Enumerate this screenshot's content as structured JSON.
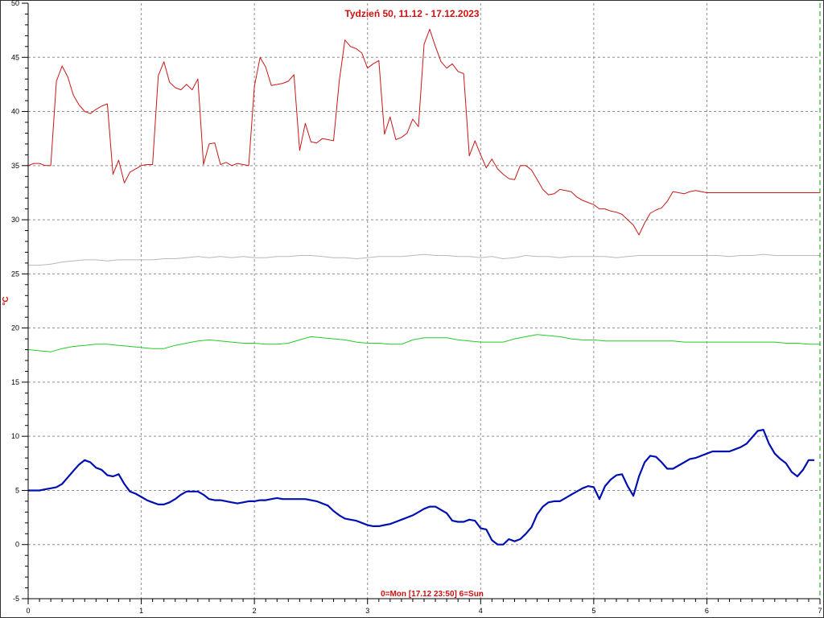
{
  "chart_data": {
    "type": "line",
    "title": "Tydzień 50, 11.12 - 17.12.2023",
    "xlabel": "0=Mon [17.12 23:50] 6=Sun",
    "ylabel": "°C",
    "xlim": [
      0,
      7
    ],
    "ylim": [
      -5,
      50
    ],
    "xticks": [
      0,
      1,
      2,
      3,
      4,
      5,
      6,
      7
    ],
    "yticks": [
      -5,
      0,
      5,
      10,
      15,
      20,
      25,
      30,
      35,
      40,
      45,
      50
    ],
    "grid": true,
    "colors": {
      "red": "#c81818",
      "gray": "#b8b8b8",
      "green": "#22cc22",
      "blue": "#0010b0",
      "grid": "#909090",
      "end_marker": "#119911"
    },
    "series": [
      {
        "color_key": "red",
        "x": [
          0.0,
          0.05,
          0.1,
          0.15,
          0.2,
          0.25,
          0.3,
          0.35,
          0.4,
          0.45,
          0.5,
          0.55,
          0.6,
          0.65,
          0.7,
          0.75,
          0.8,
          0.85,
          0.9,
          0.95,
          1.0,
          1.05,
          1.1,
          1.15,
          1.2,
          1.25,
          1.3,
          1.35,
          1.4,
          1.45,
          1.5,
          1.55,
          1.6,
          1.65,
          1.7,
          1.75,
          1.8,
          1.85,
          1.9,
          1.95,
          2.0,
          2.05,
          2.1,
          2.15,
          2.2,
          2.25,
          2.3,
          2.35,
          2.4,
          2.45,
          2.5,
          2.55,
          2.6,
          2.65,
          2.7,
          2.75,
          2.8,
          2.85,
          2.9,
          2.95,
          3.0,
          3.05,
          3.1,
          3.15,
          3.2,
          3.25,
          3.3,
          3.35,
          3.4,
          3.45,
          3.5,
          3.55,
          3.6,
          3.65,
          3.7,
          3.75,
          3.8,
          3.85,
          3.9,
          3.95,
          4.0,
          4.05,
          4.1,
          4.15,
          4.2,
          4.25,
          4.3,
          4.35,
          4.4,
          4.45,
          4.5,
          4.55,
          4.6,
          4.65,
          4.7,
          4.75,
          4.8,
          4.85,
          4.9,
          4.95,
          5.0,
          5.05,
          5.1,
          5.15,
          5.2,
          5.25,
          5.3,
          5.35,
          5.4,
          5.45,
          5.5,
          5.55,
          5.6,
          5.65,
          5.7,
          5.75,
          5.8,
          5.85,
          5.9,
          5.95,
          6.0,
          6.05,
          6.1,
          6.15,
          6.2,
          6.25,
          6.3,
          6.35,
          6.4,
          6.45,
          6.5,
          6.55,
          6.6,
          6.65,
          6.7,
          6.75,
          6.8,
          6.85,
          6.9,
          6.95,
          7.0
        ],
        "values": [
          35.0,
          35.2,
          35.2,
          35.0,
          35.0,
          42.8,
          44.2,
          43.2,
          41.5,
          40.6,
          40.0,
          39.8,
          40.2,
          40.5,
          40.7,
          34.2,
          35.5,
          33.4,
          34.4,
          34.7,
          35.0,
          35.1,
          35.1,
          43.3,
          44.6,
          42.7,
          42.2,
          42.0,
          42.5,
          42.0,
          43.0,
          35.1,
          37.0,
          37.1,
          35.1,
          35.3,
          35.0,
          35.2,
          35.1,
          35.0,
          42.3,
          45.0,
          44.1,
          42.4,
          42.5,
          42.6,
          42.8,
          43.4,
          36.4,
          38.9,
          37.2,
          37.1,
          37.5,
          37.4,
          37.3,
          42.8,
          46.6,
          46.0,
          45.8,
          45.4,
          44.0,
          44.4,
          44.7,
          37.9,
          39.5,
          37.4,
          37.6,
          38.0,
          39.3,
          38.6,
          46.2,
          47.6,
          46.0,
          44.6,
          44.0,
          44.4,
          43.7,
          43.5,
          35.9,
          37.3,
          36.0,
          34.8,
          35.6,
          34.7,
          34.2,
          33.8,
          33.7,
          35.0,
          35.0,
          34.6,
          33.7,
          32.8,
          32.3,
          32.4,
          32.8,
          32.7,
          32.6,
          32.1,
          31.8,
          31.6,
          31.4,
          31.0,
          31.0,
          30.8,
          30.7,
          30.5,
          30.0,
          29.5,
          28.6,
          29.7,
          30.6,
          30.9,
          31.1,
          31.7,
          32.6,
          32.5,
          32.4,
          32.6,
          32.7,
          32.6,
          32.5,
          32.5,
          32.5,
          32.5,
          32.5,
          32.5,
          32.5,
          32.5,
          32.5,
          32.5,
          32.5,
          32.5,
          32.5,
          32.5,
          32.5,
          32.5,
          32.5,
          32.5,
          32.5,
          32.5,
          32.5
        ],
        "x_end": 6.95
      },
      {
        "color_key": "gray",
        "x": [
          0.0,
          0.1,
          0.2,
          0.3,
          0.4,
          0.5,
          0.6,
          0.7,
          0.8,
          0.9,
          1.0,
          1.1,
          1.2,
          1.3,
          1.4,
          1.5,
          1.6,
          1.7,
          1.8,
          1.9,
          2.0,
          2.1,
          2.2,
          2.3,
          2.4,
          2.5,
          2.6,
          2.7,
          2.8,
          2.9,
          3.0,
          3.1,
          3.2,
          3.3,
          3.4,
          3.5,
          3.6,
          3.7,
          3.8,
          3.9,
          4.0,
          4.1,
          4.2,
          4.3,
          4.4,
          4.5,
          4.6,
          4.7,
          4.8,
          4.9,
          5.0,
          5.1,
          5.2,
          5.3,
          5.4,
          5.5,
          5.6,
          5.7,
          5.8,
          5.9,
          6.0,
          6.1,
          6.2,
          6.3,
          6.4,
          6.5,
          6.6,
          6.7,
          6.8,
          6.9,
          7.0
        ],
        "values": [
          25.8,
          25.8,
          25.9,
          26.1,
          26.2,
          26.3,
          26.3,
          26.2,
          26.3,
          26.3,
          26.3,
          26.3,
          26.4,
          26.4,
          26.5,
          26.6,
          26.5,
          26.6,
          26.5,
          26.6,
          26.5,
          26.5,
          26.6,
          26.6,
          26.7,
          26.7,
          26.6,
          26.5,
          26.5,
          26.4,
          26.5,
          26.6,
          26.6,
          26.6,
          26.7,
          26.8,
          26.7,
          26.7,
          26.6,
          26.6,
          26.5,
          26.6,
          26.4,
          26.5,
          26.7,
          26.6,
          26.6,
          26.5,
          26.6,
          26.6,
          26.6,
          26.6,
          26.5,
          26.6,
          26.7,
          26.7,
          26.7,
          26.7,
          26.7,
          26.7,
          26.7,
          26.7,
          26.6,
          26.7,
          26.7,
          26.8,
          26.7,
          26.7,
          26.7,
          26.7,
          26.7
        ],
        "x_end": 6.95
      },
      {
        "color_key": "green",
        "x": [
          0.0,
          0.1,
          0.2,
          0.3,
          0.4,
          0.5,
          0.6,
          0.7,
          0.8,
          0.9,
          1.0,
          1.1,
          1.2,
          1.3,
          1.4,
          1.5,
          1.6,
          1.7,
          1.8,
          1.9,
          2.0,
          2.1,
          2.2,
          2.3,
          2.4,
          2.5,
          2.6,
          2.7,
          2.8,
          2.9,
          3.0,
          3.1,
          3.2,
          3.3,
          3.4,
          3.5,
          3.6,
          3.7,
          3.8,
          3.9,
          4.0,
          4.1,
          4.2,
          4.3,
          4.4,
          4.5,
          4.6,
          4.7,
          4.8,
          4.9,
          5.0,
          5.1,
          5.2,
          5.3,
          5.4,
          5.5,
          5.6,
          5.7,
          5.8,
          5.9,
          6.0,
          6.1,
          6.2,
          6.3,
          6.4,
          6.5,
          6.6,
          6.7,
          6.8,
          6.9,
          7.0
        ],
        "values": [
          18.0,
          17.9,
          17.8,
          18.1,
          18.3,
          18.4,
          18.5,
          18.5,
          18.4,
          18.3,
          18.2,
          18.1,
          18.1,
          18.4,
          18.6,
          18.8,
          18.9,
          18.8,
          18.7,
          18.6,
          18.6,
          18.5,
          18.5,
          18.6,
          18.9,
          19.2,
          19.1,
          19.0,
          18.9,
          18.7,
          18.6,
          18.6,
          18.5,
          18.5,
          18.9,
          19.1,
          19.1,
          19.1,
          18.9,
          18.8,
          18.7,
          18.7,
          18.7,
          19.0,
          19.2,
          19.4,
          19.3,
          19.2,
          19.0,
          18.9,
          18.9,
          18.8,
          18.8,
          18.8,
          18.8,
          18.8,
          18.8,
          18.8,
          18.7,
          18.7,
          18.7,
          18.7,
          18.7,
          18.7,
          18.7,
          18.7,
          18.7,
          18.6,
          18.6,
          18.5,
          18.5
        ],
        "x_end": 6.95
      },
      {
        "color_key": "blue",
        "x": [
          0.0,
          0.05,
          0.1,
          0.15,
          0.2,
          0.25,
          0.3,
          0.35,
          0.4,
          0.45,
          0.5,
          0.55,
          0.6,
          0.65,
          0.7,
          0.75,
          0.8,
          0.85,
          0.9,
          0.95,
          1.0,
          1.05,
          1.1,
          1.15,
          1.2,
          1.25,
          1.3,
          1.35,
          1.4,
          1.45,
          1.5,
          1.55,
          1.6,
          1.65,
          1.7,
          1.75,
          1.8,
          1.85,
          1.9,
          1.95,
          2.0,
          2.05,
          2.1,
          2.15,
          2.2,
          2.25,
          2.3,
          2.35,
          2.4,
          2.45,
          2.5,
          2.55,
          2.6,
          2.65,
          2.7,
          2.75,
          2.8,
          2.85,
          2.9,
          2.95,
          3.0,
          3.05,
          3.1,
          3.15,
          3.2,
          3.25,
          3.3,
          3.35,
          3.4,
          3.45,
          3.5,
          3.55,
          3.6,
          3.65,
          3.7,
          3.75,
          3.8,
          3.85,
          3.9,
          3.95,
          4.0,
          4.05,
          4.1,
          4.15,
          4.2,
          4.25,
          4.3,
          4.35,
          4.4,
          4.45,
          4.5,
          4.55,
          4.6,
          4.65,
          4.7,
          4.75,
          4.8,
          4.85,
          4.9,
          4.95,
          5.0,
          5.05,
          5.1,
          5.15,
          5.2,
          5.25,
          5.3,
          5.35,
          5.4,
          5.45,
          5.5,
          5.55,
          5.6,
          5.65,
          5.7,
          5.75,
          5.8,
          5.85,
          5.9,
          5.95,
          6.0,
          6.05,
          6.1,
          6.15,
          6.2,
          6.25,
          6.3,
          6.35,
          6.4,
          6.45,
          6.5,
          6.55,
          6.6,
          6.65,
          6.7,
          6.75,
          6.8,
          6.85,
          6.9,
          6.95
        ],
        "values": [
          5.0,
          5.0,
          5.0,
          5.1,
          5.2,
          5.3,
          5.6,
          6.2,
          6.8,
          7.4,
          7.8,
          7.6,
          7.1,
          6.9,
          6.4,
          6.3,
          6.5,
          5.6,
          4.9,
          4.7,
          4.4,
          4.1,
          3.9,
          3.7,
          3.7,
          3.9,
          4.2,
          4.6,
          4.9,
          4.9,
          4.9,
          4.6,
          4.2,
          4.1,
          4.1,
          4.0,
          3.9,
          3.8,
          3.9,
          4.0,
          4.0,
          4.1,
          4.1,
          4.2,
          4.3,
          4.2,
          4.2,
          4.2,
          4.2,
          4.2,
          4.1,
          4.0,
          3.8,
          3.6,
          3.1,
          2.7,
          2.4,
          2.3,
          2.2,
          2.0,
          1.8,
          1.7,
          1.7,
          1.8,
          1.9,
          2.1,
          2.3,
          2.5,
          2.7,
          3.0,
          3.3,
          3.5,
          3.5,
          3.2,
          2.9,
          2.2,
          2.1,
          2.1,
          2.3,
          2.2,
          1.5,
          1.4,
          0.4,
          0.0,
          0.0,
          0.5,
          0.3,
          0.5,
          1.0,
          1.6,
          2.8,
          3.5,
          3.9,
          4.0,
          4.0,
          4.3,
          4.6,
          4.9,
          5.2,
          5.4,
          5.3,
          4.2,
          5.4,
          6.0,
          6.4,
          6.5,
          5.4,
          4.5,
          6.3,
          7.6,
          8.2,
          8.1,
          7.6,
          7.0,
          7.0,
          7.3,
          7.6,
          7.9,
          8.0,
          8.2,
          8.4,
          8.6,
          8.6,
          8.6,
          8.6,
          8.8,
          9.0,
          9.3,
          9.9,
          10.5,
          10.6,
          9.3,
          8.4,
          7.9,
          7.5,
          6.7,
          6.3,
          6.9,
          7.8,
          7.8
        ]
      }
    ]
  }
}
